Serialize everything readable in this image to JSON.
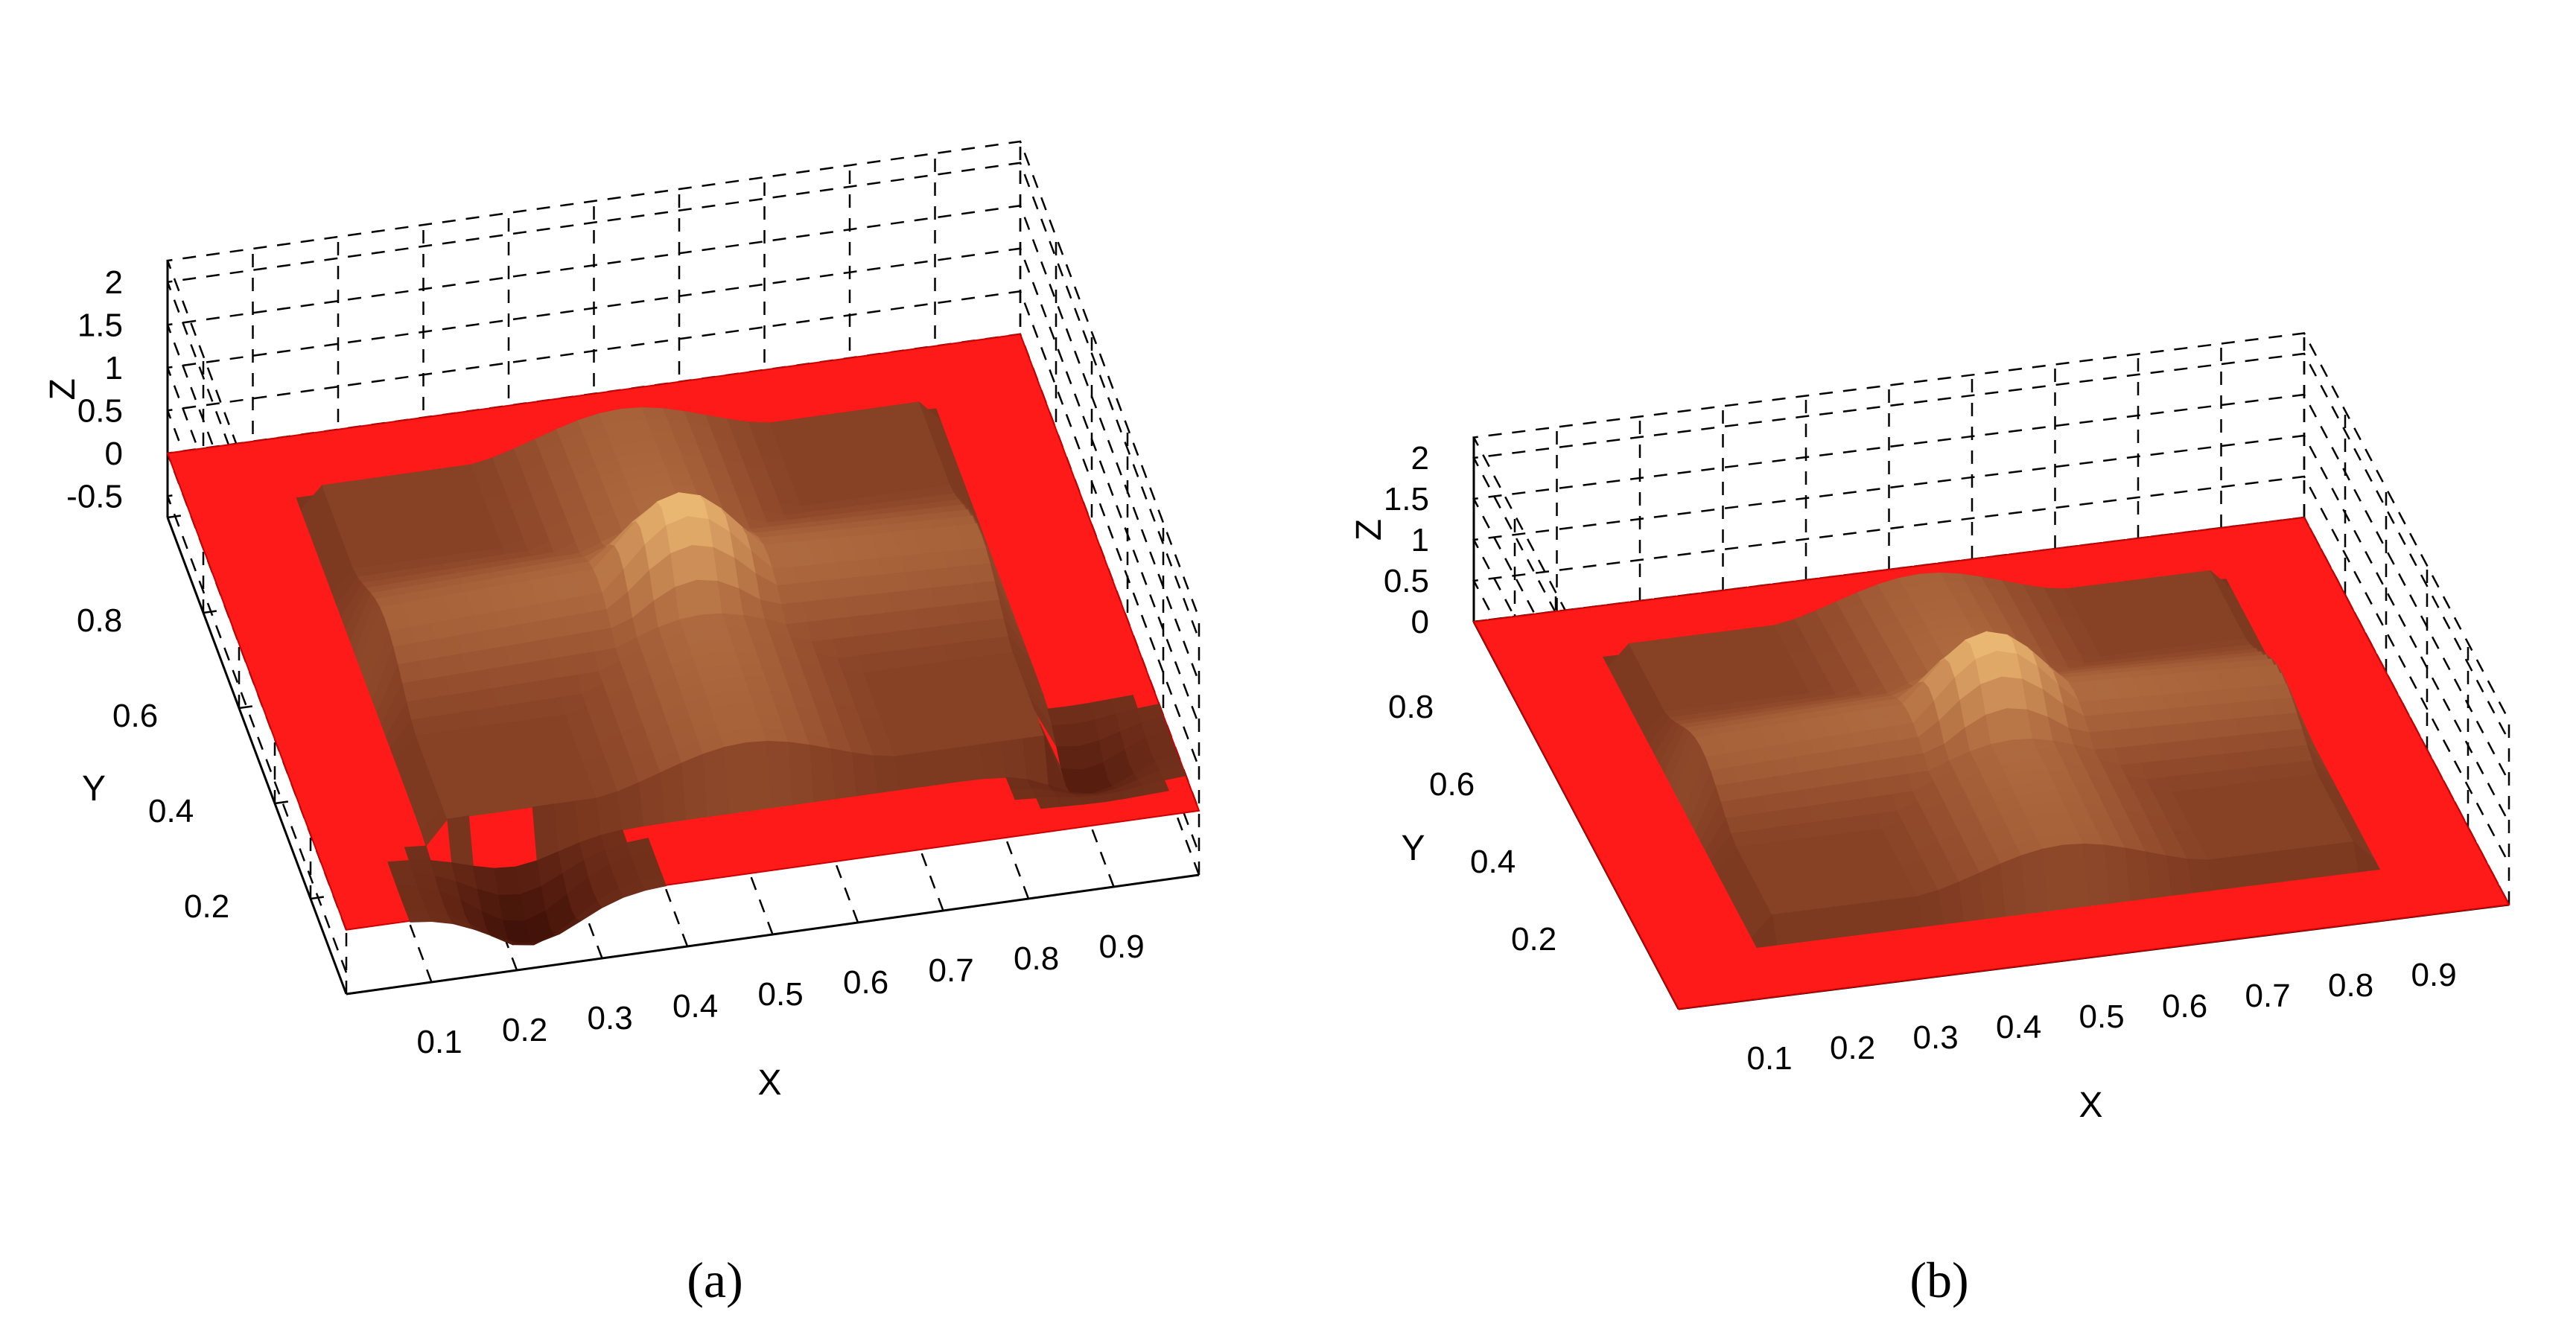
{
  "chart_data": [
    {
      "type": "surface",
      "caption": "(a)",
      "xlabel": "X",
      "ylabel": "Y",
      "zlabel": "Z",
      "xticks": [
        "0.1",
        "0.2",
        "0.3",
        "0.4",
        "0.5",
        "0.6",
        "0.7",
        "0.8",
        "0.9"
      ],
      "yticks": [
        "0.2",
        "0.4",
        "0.6",
        "0.8"
      ],
      "zticks": [
        "-0.5",
        "0",
        "0.5",
        "1",
        "1.5",
        "2"
      ],
      "xlim": [
        0,
        1
      ],
      "ylim": [
        0,
        1
      ],
      "zlim": [
        -0.75,
        2.25
      ],
      "grid": true,
      "plane_color": "#ff1a1a",
      "surface_color": "#f2b07a",
      "peak": {
        "x": 0.5,
        "y": 0.5,
        "z": 1.6
      },
      "ridge_height": 0.75,
      "edge_wall_height": 0.35,
      "min_z": -0.7
    },
    {
      "type": "surface",
      "caption": "(b)",
      "xlabel": "X",
      "ylabel": "Y",
      "zlabel": "Z",
      "xticks": [
        "0.1",
        "0.2",
        "0.3",
        "0.4",
        "0.5",
        "0.6",
        "0.7",
        "0.8",
        "0.9"
      ],
      "yticks": [
        "0.2",
        "0.4",
        "0.6",
        "0.8"
      ],
      "zticks": [
        "0",
        "0.5",
        "1",
        "1.5",
        "2"
      ],
      "xlim": [
        0,
        1
      ],
      "ylim": [
        0,
        1
      ],
      "zlim": [
        0,
        2.25
      ],
      "grid": true,
      "plane_color": "#ff1a1a",
      "surface_color": "#f2b07a",
      "peak": {
        "x": 0.5,
        "y": 0.5,
        "z": 1.6
      },
      "ridge_height": 0.75,
      "edge_wall_height": 0.35,
      "min_z": 0
    }
  ]
}
